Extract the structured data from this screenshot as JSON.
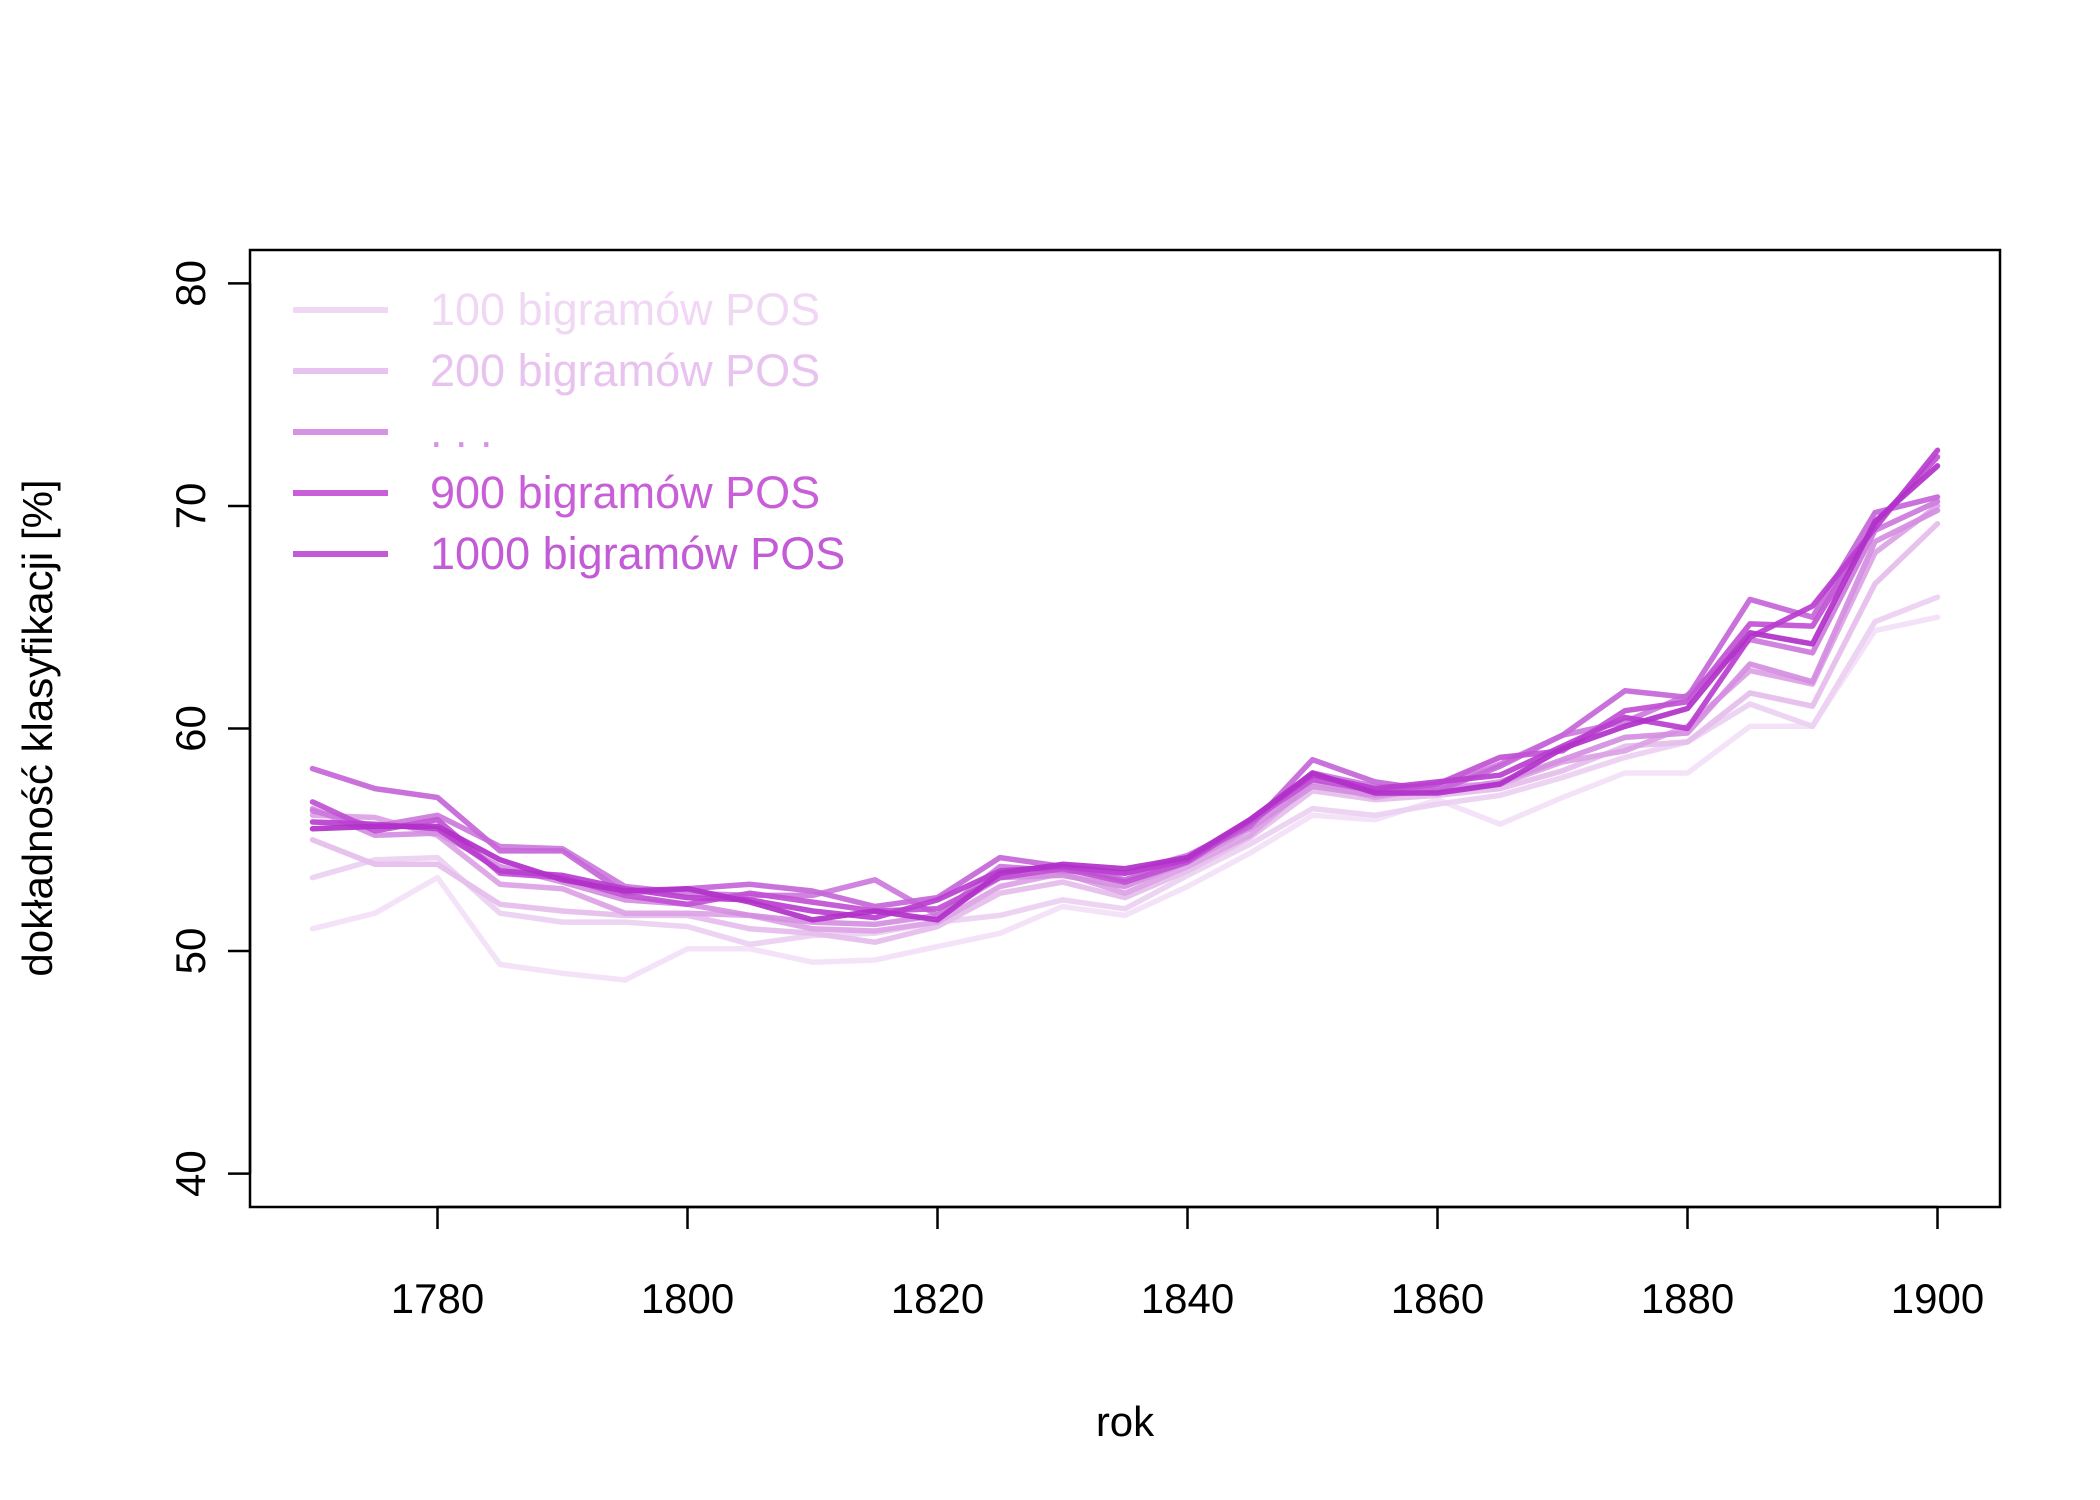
{
  "chart_data": {
    "type": "line",
    "title": "",
    "xlabel": "rok",
    "ylabel": "dokładność klasyfikacji [%]",
    "xlim": [
      1765,
      1905
    ],
    "ylim": [
      38.5,
      81.5
    ],
    "x_ticks": [
      1780,
      1800,
      1820,
      1840,
      1860,
      1880,
      1900
    ],
    "y_ticks": [
      40,
      50,
      60,
      70,
      80
    ],
    "grid": false,
    "legend_position": "top-left",
    "legend": [
      {
        "label": "100 bigramów POS",
        "color": "#f0d8f5"
      },
      {
        "label": "200 bigramów POS",
        "color": "#e8c3ef"
      },
      {
        "label": ". . .",
        "color": "#d793e3"
      },
      {
        "label": "900 bigramów POS",
        "color": "#c95fd8"
      },
      {
        "label": "1000 bigramów POS",
        "color": "#c25bd5"
      }
    ],
    "x": [
      1770,
      1775,
      1780,
      1785,
      1790,
      1795,
      1800,
      1805,
      1810,
      1815,
      1820,
      1825,
      1830,
      1835,
      1840,
      1845,
      1850,
      1855,
      1860,
      1865,
      1870,
      1875,
      1880,
      1885,
      1890,
      1895,
      1900
    ],
    "series": [
      {
        "color": "#f3e1f7",
        "values": [
          51.0,
          51.7,
          53.3,
          49.4,
          49.0,
          48.7,
          50.1,
          50.1,
          49.5,
          49.6,
          50.2,
          50.8,
          52.0,
          51.6,
          52.9,
          54.4,
          56.1,
          55.9,
          56.8,
          55.7,
          56.9,
          58.0,
          58.0,
          60.1,
          60.1,
          64.4,
          65.0
        ]
      },
      {
        "color": "#ecd0f2",
        "values": [
          53.3,
          54.1,
          54.2,
          51.7,
          51.3,
          51.3,
          51.1,
          50.3,
          50.7,
          50.8,
          51.3,
          51.6,
          52.3,
          51.9,
          53.4,
          54.8,
          56.4,
          56.1,
          56.6,
          57.0,
          57.8,
          58.7,
          59.4,
          61.1,
          60.1,
          64.8,
          65.9
        ]
      },
      {
        "color": "#e5bdec",
        "values": [
          55.0,
          53.9,
          53.9,
          52.1,
          51.8,
          51.6,
          51.6,
          51.0,
          50.8,
          50.4,
          51.1,
          52.6,
          53.1,
          52.4,
          53.6,
          55.1,
          57.2,
          56.8,
          57.0,
          57.3,
          58.1,
          59.2,
          59.4,
          61.6,
          61.0,
          66.5,
          69.2
        ]
      },
      {
        "color": "#dca2e6",
        "values": [
          56.1,
          56.0,
          55.2,
          53.0,
          52.8,
          51.7,
          51.7,
          51.6,
          51.0,
          50.9,
          51.3,
          52.9,
          53.5,
          52.6,
          53.8,
          55.2,
          57.6,
          56.9,
          57.4,
          57.5,
          58.5,
          59.0,
          60.1,
          62.6,
          62.0,
          67.9,
          70.0
        ]
      },
      {
        "color": "#d48ee1",
        "values": [
          56.4,
          55.2,
          55.3,
          53.8,
          53.1,
          52.3,
          52.1,
          51.6,
          51.3,
          51.2,
          51.6,
          53.3,
          53.4,
          52.9,
          54.0,
          55.5,
          57.4,
          57.0,
          57.2,
          57.6,
          58.6,
          59.6,
          59.8,
          62.9,
          62.1,
          68.4,
          69.8
        ]
      },
      {
        "color": "#cc78dc",
        "values": [
          56.3,
          55.6,
          56.1,
          54.7,
          54.6,
          52.9,
          52.6,
          52.5,
          52.5,
          53.2,
          51.6,
          53.8,
          53.6,
          53.5,
          54.3,
          55.7,
          58.0,
          57.4,
          57.3,
          58.4,
          59.7,
          60.3,
          61.5,
          64.0,
          63.4,
          68.9,
          70.2
        ]
      },
      {
        "color": "#c666d8",
        "values": [
          58.2,
          57.3,
          56.9,
          54.5,
          54.5,
          52.6,
          52.8,
          53.0,
          52.7,
          52.0,
          52.4,
          54.2,
          53.8,
          53.2,
          54.2,
          55.6,
          58.6,
          57.6,
          57.2,
          58.3,
          59.7,
          61.7,
          61.4,
          65.8,
          65.0,
          69.7,
          70.4
        ]
      },
      {
        "color": "#c050d4",
        "values": [
          56.7,
          55.4,
          55.9,
          53.5,
          53.3,
          52.5,
          52.1,
          52.6,
          52.2,
          51.8,
          51.9,
          53.3,
          53.7,
          53.1,
          54.0,
          55.8,
          57.7,
          57.2,
          57.5,
          58.7,
          59.0,
          60.8,
          61.2,
          64.7,
          64.6,
          69.2,
          72.2
        ]
      },
      {
        "color": "#b83ecf",
        "values": [
          55.8,
          55.7,
          55.5,
          53.6,
          53.4,
          52.8,
          52.4,
          52.3,
          51.8,
          51.5,
          52.3,
          53.6,
          53.8,
          53.5,
          54.1,
          55.9,
          57.9,
          57.3,
          57.6,
          57.9,
          59.2,
          60.5,
          60.0,
          64.1,
          65.5,
          69.0,
          72.5
        ]
      },
      {
        "color": "#b130c9",
        "values": [
          55.5,
          55.6,
          55.6,
          54.1,
          53.2,
          52.7,
          52.8,
          52.2,
          51.4,
          51.8,
          51.4,
          53.5,
          53.9,
          53.7,
          54.2,
          55.9,
          58.0,
          57.1,
          57.1,
          57.5,
          59.1,
          60.1,
          60.9,
          64.3,
          63.8,
          69.3,
          71.8
        ]
      }
    ]
  }
}
